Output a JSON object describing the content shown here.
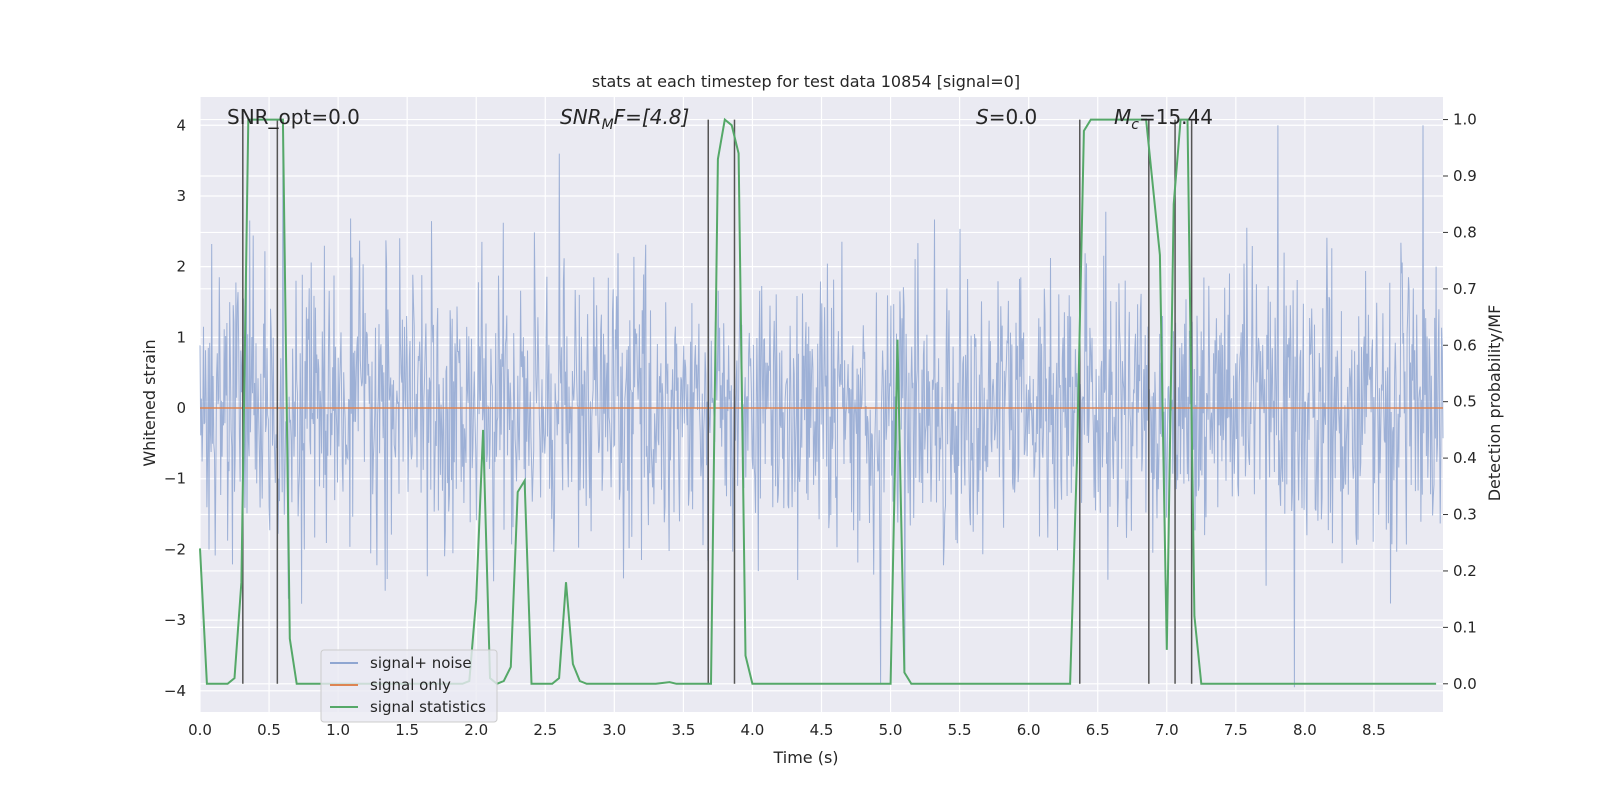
{
  "chart_data": {
    "type": "line",
    "title": "stats at each timestep for test data 10854 [signal=0]",
    "xlabel": "Time (s)",
    "ylabel": "Whitened strain",
    "ylabel_right": "Detection probability/MF",
    "xlim": [
      0,
      9
    ],
    "ylim": [
      -4.3,
      4.4
    ],
    "ylim_right": [
      -0.05,
      1.04
    ],
    "x_ticks": [
      "0.0",
      "0.5",
      "1.0",
      "1.5",
      "2.0",
      "2.5",
      "3.0",
      "3.5",
      "4.0",
      "4.5",
      "5.0",
      "5.5",
      "6.0",
      "6.5",
      "7.0",
      "7.5",
      "8.0",
      "8.5"
    ],
    "y_ticks": [
      "4",
      "3",
      "2",
      "1",
      "0",
      "−1",
      "−2",
      "−3",
      "−4"
    ],
    "y_ticks_right": [
      "1.0",
      "0.9",
      "0.8",
      "0.7",
      "0.6",
      "0.5",
      "0.4",
      "0.3",
      "0.2",
      "0.1",
      "0.0"
    ],
    "grid": true,
    "legend_placement": "lower-left",
    "annotations": {
      "snr_opt": "SNR_opt=0.0",
      "snr_mf_name": "SNR",
      "snr_mf_sub": "M",
      "snr_mf_rest": "F=[4.8]",
      "s_name": "S",
      "s_rest": "=0.0",
      "mc_name": "M",
      "mc_sub": "c",
      "mc_rest": "=15.44"
    },
    "series": [
      {
        "name": "signal+ noise",
        "axis": "left",
        "color": "#8fa6d1",
        "description_stats": {
          "samples": 1800,
          "typical_range": [
            -2.0,
            2.0
          ],
          "peaks": [
            3.8,
            3.6,
            4.0,
            4.0,
            -3.9
          ]
        }
      },
      {
        "name": "signal only",
        "axis": "left",
        "color": "#dd8452",
        "x": [
          0,
          9
        ],
        "y": [
          0,
          0
        ]
      },
      {
        "name": "signal statistics",
        "axis": "right",
        "color": "#55a868",
        "x": [
          0.0,
          0.05,
          0.1,
          0.2,
          0.25,
          0.3,
          0.35,
          0.4,
          0.5,
          0.55,
          0.6,
          0.65,
          0.7,
          0.8,
          1.0,
          1.5,
          1.9,
          1.95,
          2.0,
          2.05,
          2.1,
          2.15,
          2.2,
          2.25,
          2.3,
          2.35,
          2.4,
          2.45,
          2.5,
          2.55,
          2.6,
          2.65,
          2.7,
          2.75,
          2.8,
          2.85,
          2.9,
          3.0,
          3.3,
          3.4,
          3.45,
          3.5,
          3.7,
          3.75,
          3.8,
          3.85,
          3.9,
          3.95,
          4.0,
          4.5,
          5.0,
          5.05,
          5.1,
          5.15,
          5.2,
          5.5,
          6.0,
          6.3,
          6.35,
          6.4,
          6.45,
          6.5,
          6.85,
          6.95,
          7.0,
          7.05,
          7.1,
          7.15,
          7.2,
          7.25,
          7.3,
          7.5,
          8.0,
          8.5,
          8.95
        ],
        "y": [
          0.24,
          0.0,
          0.0,
          0.0,
          0.01,
          0.18,
          1.0,
          1.0,
          1.0,
          1.0,
          1.0,
          0.08,
          0.0,
          0.0,
          0.0,
          0.0,
          0.0,
          0.005,
          0.15,
          0.45,
          0.01,
          0.0,
          0.005,
          0.03,
          0.34,
          0.36,
          0.0,
          0.0,
          0.0,
          0.0,
          0.01,
          0.18,
          0.035,
          0.005,
          0.0,
          0.0,
          0.0,
          0.0,
          0.0,
          0.003,
          0.0,
          0.0,
          0.0,
          0.93,
          1.0,
          0.99,
          0.94,
          0.05,
          0.0,
          0.0,
          0.0,
          0.61,
          0.02,
          0.0,
          0.0,
          0.0,
          0.0,
          0.0,
          0.4,
          0.98,
          1.0,
          1.0,
          1.0,
          0.76,
          0.06,
          0.85,
          1.0,
          1.0,
          0.12,
          0.0,
          0.0,
          0.0,
          0.0,
          0.0,
          0.0
        ]
      }
    ],
    "vertical_markers_x": [
      0.31,
      0.56,
      3.68,
      3.87,
      6.37,
      6.87,
      7.06,
      7.18
    ]
  },
  "legend": {
    "noise_label": "signal+ noise",
    "signal_label": "signal only",
    "stats_label": "signal statistics"
  },
  "colors": {
    "background": "#eaeaf2",
    "grid": "#ffffff",
    "noise": "#8fa6d1",
    "signal": "#dd8452",
    "stats": "#55a868",
    "marker": "#555555"
  }
}
